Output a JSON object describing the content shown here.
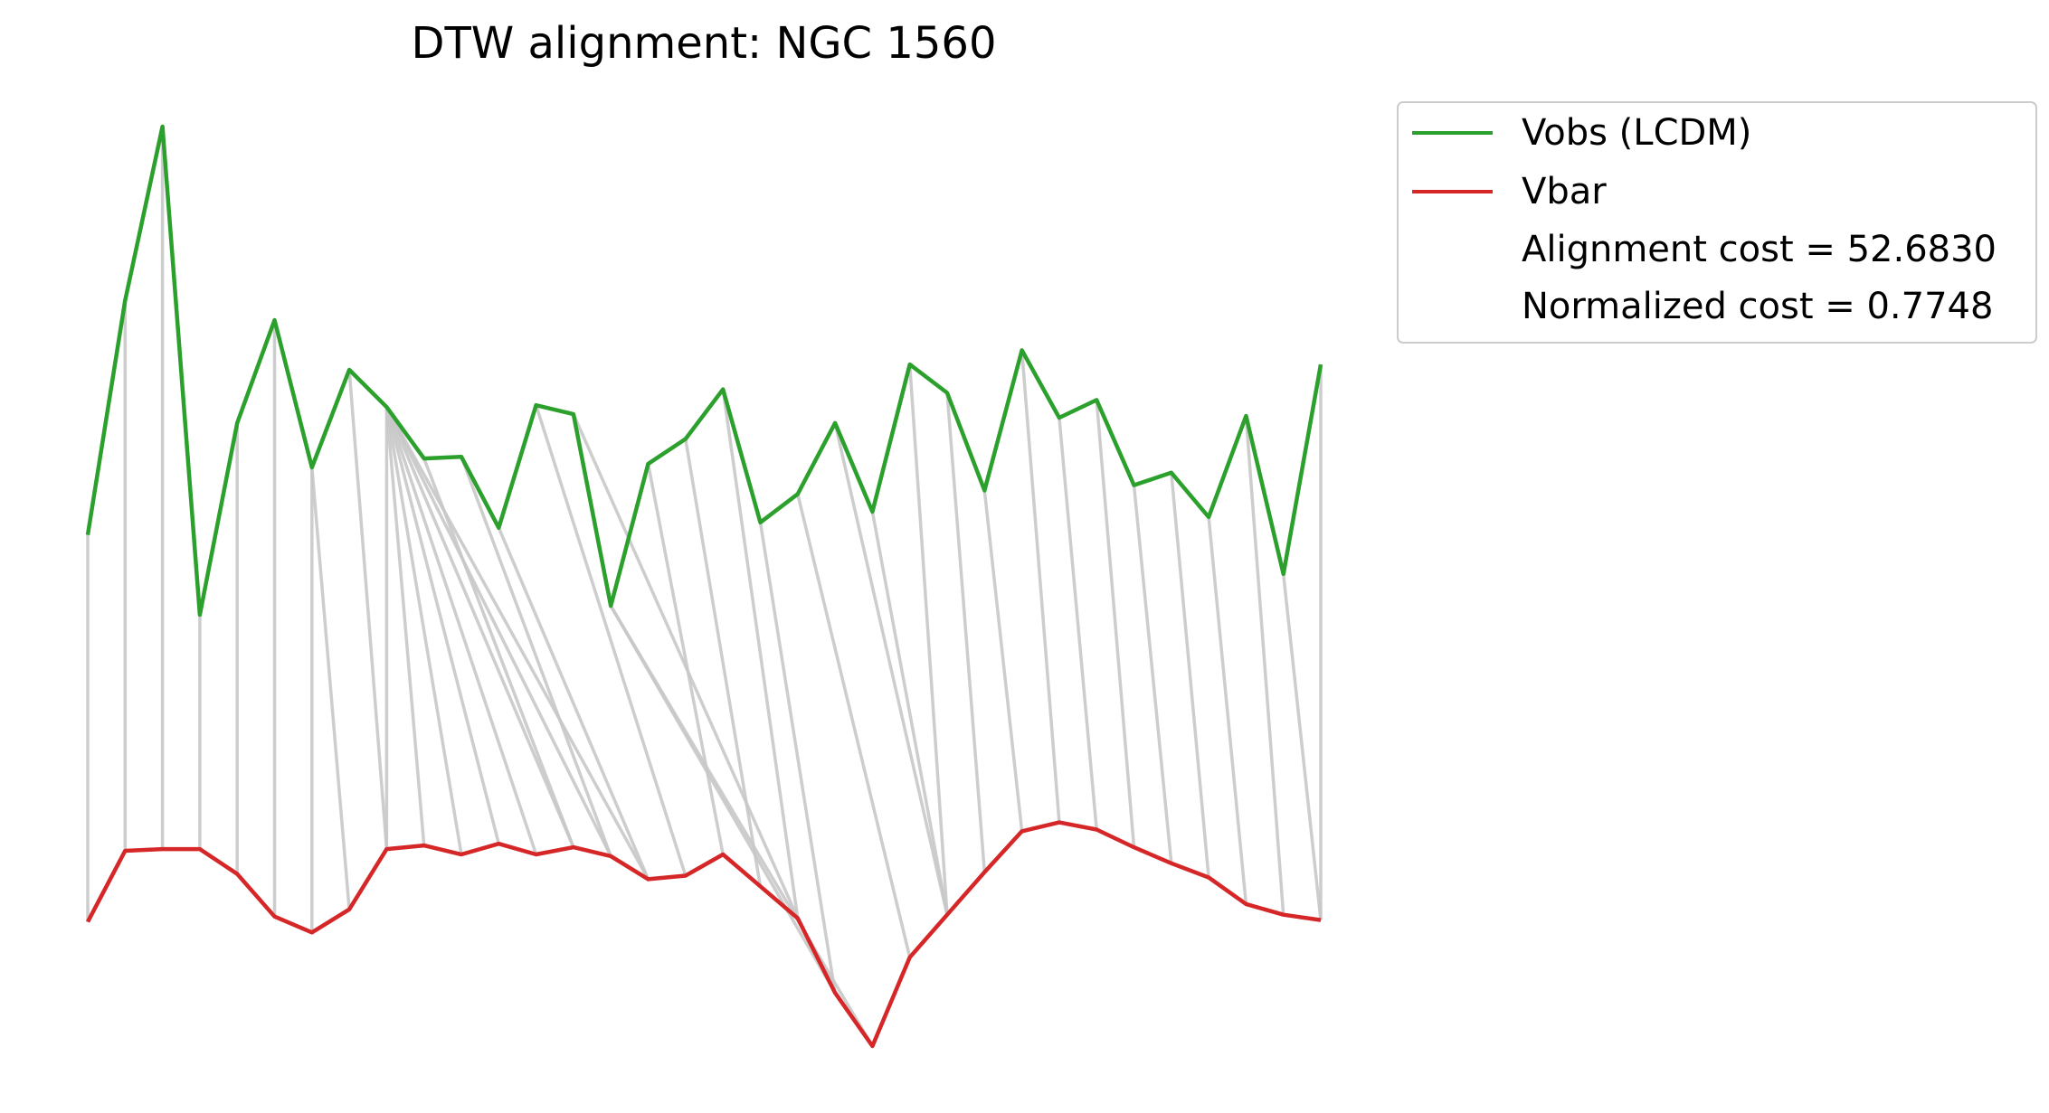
{
  "chart_data": {
    "type": "line",
    "title": "DTW alignment: NGC 1560",
    "xlabel": "",
    "ylabel": "",
    "axes_visible": false,
    "grid": false,
    "legend_placement": "outside upper right",
    "legend": {
      "entries": [
        "Vobs (LCDM)",
        "Vbar"
      ],
      "notes": [
        "Alignment cost = 52.6830",
        "Normalized cost = 0.7748"
      ]
    },
    "x": [
      0,
      1,
      2,
      3,
      4,
      5,
      6,
      7,
      8,
      9,
      10,
      11,
      12,
      13,
      14,
      15,
      16,
      17,
      18,
      19,
      20,
      21,
      22,
      23,
      24,
      25,
      26,
      27,
      28,
      29,
      30,
      31,
      32,
      33
    ],
    "series": [
      {
        "name": "Vobs (LCDM)",
        "color": "#2ca02c",
        "values": [
          528,
          660,
          758,
          483,
          591,
          649,
          566,
          621,
          600,
          571,
          572,
          532,
          601,
          596,
          488,
          568,
          582,
          610,
          535,
          551,
          591,
          541,
          624,
          608,
          553,
          632,
          594,
          604,
          556,
          563,
          538,
          595,
          506,
          624
        ]
      },
      {
        "name": "Vbar",
        "color": "#d62728",
        "values": [
          310,
          350,
          351,
          351,
          337,
          313,
          304,
          317,
          351,
          353,
          348,
          354,
          348,
          352,
          347,
          334,
          336,
          348,
          330,
          312,
          270,
          240,
          290,
          314,
          338,
          361,
          366,
          362,
          352,
          343,
          335,
          320,
          314,
          311
        ]
      }
    ],
    "alignment_color": "#c8c8c8",
    "alignment_pairs": [
      [
        0,
        0
      ],
      [
        1,
        1
      ],
      [
        2,
        2
      ],
      [
        3,
        3
      ],
      [
        4,
        4
      ],
      [
        5,
        5
      ],
      [
        6,
        6
      ],
      [
        6,
        7
      ],
      [
        7,
        8
      ],
      [
        8,
        8
      ],
      [
        8,
        9
      ],
      [
        8,
        10
      ],
      [
        8,
        11
      ],
      [
        8,
        12
      ],
      [
        8,
        13
      ],
      [
        8,
        14
      ],
      [
        8,
        15
      ],
      [
        9,
        13
      ],
      [
        10,
        14
      ],
      [
        11,
        15
      ],
      [
        12,
        16
      ],
      [
        13,
        19
      ],
      [
        14,
        20
      ],
      [
        14,
        21
      ],
      [
        15,
        17
      ],
      [
        16,
        18
      ],
      [
        17,
        19
      ],
      [
        18,
        20
      ],
      [
        19,
        22
      ],
      [
        20,
        23
      ],
      [
        21,
        23
      ],
      [
        22,
        23
      ],
      [
        23,
        24
      ],
      [
        24,
        25
      ],
      [
        25,
        26
      ],
      [
        26,
        27
      ],
      [
        27,
        28
      ],
      [
        28,
        29
      ],
      [
        29,
        30
      ],
      [
        30,
        31
      ],
      [
        31,
        32
      ],
      [
        32,
        33
      ],
      [
        33,
        33
      ]
    ]
  }
}
